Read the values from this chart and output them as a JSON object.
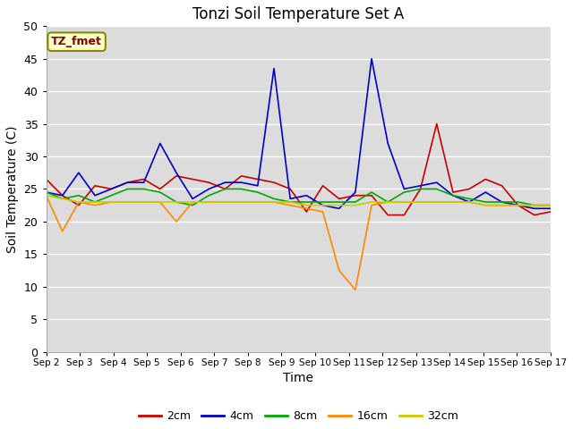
{
  "title": "Tonzi Soil Temperature Set A",
  "xlabel": "Time",
  "ylabel": "Soil Temperature (C)",
  "annotation": "TZ_fmet",
  "x_labels": [
    "Sep 2",
    "Sep 3",
    "Sep 4",
    "Sep 5",
    "Sep 6",
    "Sep 7",
    "Sep 8",
    "Sep 9",
    "Sep 10",
    "Sep 11",
    "Sep 12",
    "Sep 13",
    "Sep 14",
    "Sep 15",
    "Sep 16",
    "Sep 17"
  ],
  "ylim": [
    0,
    50
  ],
  "yticks": [
    0,
    5,
    10,
    15,
    20,
    25,
    30,
    35,
    40,
    45,
    50
  ],
  "series": {
    "2cm": {
      "color": "#cc0000",
      "data": [
        26.5,
        24.0,
        22.5,
        25.5,
        25.0,
        26.0,
        26.5,
        25.0,
        27.0,
        26.5,
        26.0,
        25.0,
        27.0,
        26.5,
        26.0,
        25.0,
        21.5,
        25.5,
        23.5,
        24.0,
        24.0,
        21.0,
        21.0,
        25.0,
        35.0,
        24.5,
        25.0,
        26.5,
        25.5,
        22.5,
        21.0,
        21.5
      ]
    },
    "4cm": {
      "color": "#0000cc",
      "data": [
        24.5,
        24.0,
        27.5,
        24.0,
        25.0,
        26.0,
        26.0,
        32.0,
        27.5,
        23.5,
        25.0,
        26.0,
        26.0,
        25.5,
        43.5,
        23.5,
        24.0,
        22.5,
        22.0,
        24.5,
        45.0,
        32.0,
        25.0,
        25.5,
        26.0,
        24.0,
        23.0,
        24.5,
        23.0,
        22.5,
        22.0,
        22.0
      ]
    },
    "8cm": {
      "color": "#00aa00",
      "data": [
        24.5,
        23.5,
        24.0,
        23.0,
        24.0,
        25.0,
        25.0,
        24.5,
        23.0,
        22.5,
        24.0,
        25.0,
        25.0,
        24.5,
        23.5,
        23.0,
        23.0,
        23.0,
        23.0,
        23.0,
        24.5,
        23.0,
        24.5,
        25.0,
        25.0,
        24.0,
        23.5,
        23.0,
        23.0,
        23.0,
        22.5,
        22.5
      ]
    },
    "16cm": {
      "color": "#ff8800",
      "data": [
        24.0,
        18.5,
        23.0,
        22.5,
        23.0,
        23.0,
        23.0,
        23.0,
        20.0,
        23.0,
        23.0,
        23.0,
        23.0,
        23.0,
        23.0,
        22.5,
        22.0,
        21.5,
        12.5,
        9.5,
        22.5,
        23.0,
        23.0,
        23.0,
        23.0,
        23.0,
        23.0,
        22.5,
        22.5,
        22.5,
        22.5,
        22.5
      ]
    },
    "32cm": {
      "color": "#cccc00",
      "data": [
        24.0,
        23.5,
        23.0,
        23.0,
        23.0,
        23.0,
        23.0,
        23.0,
        23.0,
        23.0,
        23.0,
        23.0,
        23.0,
        23.0,
        23.0,
        23.0,
        22.5,
        22.5,
        22.5,
        22.5,
        23.0,
        23.0,
        23.0,
        23.0,
        23.0,
        23.0,
        23.0,
        22.5,
        22.5,
        22.5,
        22.5,
        22.5
      ]
    }
  },
  "legend": {
    "labels": [
      "2cm",
      "4cm",
      "8cm",
      "16cm",
      "32cm"
    ],
    "colors": [
      "#cc0000",
      "#0000cc",
      "#00aa00",
      "#ff8800",
      "#cccc00"
    ]
  },
  "bg_color": "#dcdcdc",
  "title_fontsize": 12,
  "annotation_bg": "#ffffcc",
  "annotation_fg": "#880000",
  "annotation_edge": "#888800"
}
